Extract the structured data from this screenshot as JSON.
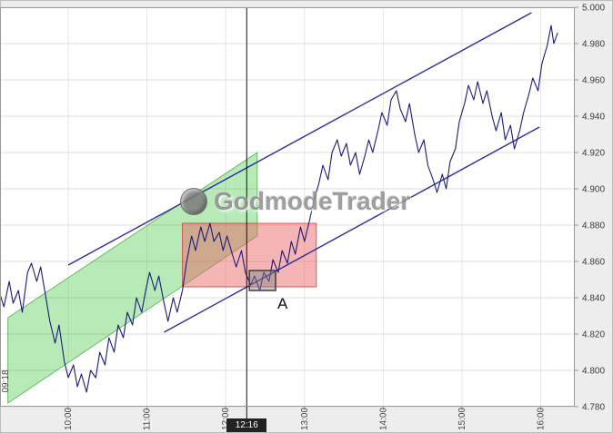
{
  "watermark": {
    "text": "GodmodeTrader"
  },
  "chart_data": {
    "type": "line",
    "title": "",
    "xlabel": "",
    "ylabel": "",
    "grid": true,
    "xlim": [
      548,
      986
    ],
    "ylim": [
      4.78,
      5.0
    ],
    "x_unit": "minutes_since_midnight",
    "y_ticks": [
      {
        "value": 5.0,
        "label": "5.000"
      },
      {
        "value": 4.98,
        "label": "4.980"
      },
      {
        "value": 4.96,
        "label": "4.960"
      },
      {
        "value": 4.94,
        "label": "4.940"
      },
      {
        "value": 4.92,
        "label": "4.920"
      },
      {
        "value": 4.9,
        "label": "4.900"
      },
      {
        "value": 4.88,
        "label": "4.880"
      },
      {
        "value": 4.86,
        "label": "4.860"
      },
      {
        "value": 4.84,
        "label": "4.840"
      },
      {
        "value": 4.82,
        "label": "4.820"
      },
      {
        "value": 4.8,
        "label": "4.800"
      },
      {
        "value": 4.78,
        "label": "4.780"
      }
    ],
    "x_ticks": [
      {
        "value": 600,
        "label": "10:00"
      },
      {
        "value": 660,
        "label": "11:00"
      },
      {
        "value": 720,
        "label": "12:00"
      },
      {
        "value": 780,
        "label": "13:00"
      },
      {
        "value": 840,
        "label": "14:00"
      },
      {
        "value": 900,
        "label": "15:00"
      },
      {
        "value": 960,
        "label": "16:00"
      }
    ],
    "series": [
      {
        "name": "price",
        "color": "#1b1b7e",
        "points": [
          [
            548,
            4.842
          ],
          [
            551,
            4.835
          ],
          [
            555,
            4.849
          ],
          [
            558,
            4.837
          ],
          [
            562,
            4.844
          ],
          [
            565,
            4.832
          ],
          [
            569,
            4.854
          ],
          [
            572,
            4.859
          ],
          [
            576,
            4.849
          ],
          [
            579,
            4.857
          ],
          [
            583,
            4.84
          ],
          [
            586,
            4.827
          ],
          [
            590,
            4.815
          ],
          [
            593,
            4.825
          ],
          [
            597,
            4.805
          ],
          [
            600,
            4.796
          ],
          [
            604,
            4.803
          ],
          [
            607,
            4.791
          ],
          [
            610,
            4.798
          ],
          [
            614,
            4.788
          ],
          [
            617,
            4.8
          ],
          [
            621,
            4.796
          ],
          [
            624,
            4.81
          ],
          [
            628,
            4.803
          ],
          [
            631,
            4.818
          ],
          [
            635,
            4.81
          ],
          [
            638,
            4.825
          ],
          [
            642,
            4.818
          ],
          [
            645,
            4.832
          ],
          [
            649,
            4.825
          ],
          [
            652,
            4.84
          ],
          [
            656,
            4.832
          ],
          [
            659,
            4.844
          ],
          [
            662,
            4.854
          ],
          [
            666,
            4.844
          ],
          [
            669,
            4.852
          ],
          [
            673,
            4.837
          ],
          [
            676,
            4.827
          ],
          [
            680,
            4.84
          ],
          [
            683,
            4.832
          ],
          [
            687,
            4.844
          ],
          [
            690,
            4.859
          ],
          [
            694,
            4.874
          ],
          [
            697,
            4.866
          ],
          [
            701,
            4.879
          ],
          [
            704,
            4.871
          ],
          [
            708,
            4.881
          ],
          [
            711,
            4.871
          ],
          [
            715,
            4.876
          ],
          [
            718,
            4.866
          ],
          [
            721,
            4.874
          ],
          [
            725,
            4.864
          ],
          [
            728,
            4.857
          ],
          [
            732,
            4.866
          ],
          [
            735,
            4.854
          ],
          [
            739,
            4.847
          ],
          [
            742,
            4.852
          ],
          [
            746,
            4.844
          ],
          [
            749,
            4.854
          ],
          [
            753,
            4.849
          ],
          [
            756,
            4.861
          ],
          [
            760,
            4.854
          ],
          [
            763,
            4.866
          ],
          [
            767,
            4.859
          ],
          [
            770,
            4.871
          ],
          [
            773,
            4.864
          ],
          [
            777,
            4.879
          ],
          [
            780,
            4.871
          ],
          [
            784,
            4.883
          ],
          [
            787,
            4.893
          ],
          [
            791,
            4.903
          ],
          [
            794,
            4.913
          ],
          [
            798,
            4.905
          ],
          [
            801,
            4.92
          ],
          [
            805,
            4.927
          ],
          [
            808,
            4.918
          ],
          [
            812,
            4.925
          ],
          [
            815,
            4.913
          ],
          [
            819,
            4.92
          ],
          [
            822,
            4.908
          ],
          [
            826,
            4.918
          ],
          [
            829,
            4.927
          ],
          [
            832,
            4.92
          ],
          [
            836,
            4.932
          ],
          [
            839,
            4.942
          ],
          [
            843,
            4.935
          ],
          [
            846,
            4.949
          ],
          [
            850,
            4.954
          ],
          [
            853,
            4.944
          ],
          [
            857,
            4.937
          ],
          [
            860,
            4.947
          ],
          [
            864,
            4.93
          ],
          [
            867,
            4.92
          ],
          [
            871,
            4.927
          ],
          [
            874,
            4.913
          ],
          [
            878,
            4.905
          ],
          [
            881,
            4.898
          ],
          [
            885,
            4.908
          ],
          [
            888,
            4.9
          ],
          [
            891,
            4.915
          ],
          [
            895,
            4.922
          ],
          [
            898,
            4.937
          ],
          [
            902,
            4.947
          ],
          [
            905,
            4.957
          ],
          [
            909,
            4.949
          ],
          [
            912,
            4.959
          ],
          [
            916,
            4.947
          ],
          [
            919,
            4.954
          ],
          [
            923,
            4.94
          ],
          [
            926,
            4.932
          ],
          [
            930,
            4.942
          ],
          [
            933,
            4.927
          ],
          [
            937,
            4.935
          ],
          [
            940,
            4.922
          ],
          [
            944,
            4.932
          ],
          [
            947,
            4.942
          ],
          [
            951,
            4.952
          ],
          [
            954,
            4.961
          ],
          [
            958,
            4.954
          ],
          [
            961,
            4.969
          ],
          [
            965,
            4.979
          ],
          [
            968,
            4.99
          ],
          [
            970,
            4.98
          ],
          [
            973,
            4.986
          ]
        ]
      }
    ],
    "annotations": {
      "first_time_label": "09:18",
      "green_channel": {
        "fill": "#28be28",
        "stroke": "#1e961e",
        "points": [
          [
            554,
            4.829
          ],
          [
            744,
            4.92
          ],
          [
            744,
            4.874
          ],
          [
            554,
            4.782
          ]
        ]
      },
      "red_zone": {
        "fill": "#eb5a5a",
        "stroke": "#c83c3c",
        "t1": 687,
        "t2": 789,
        "p1": 4.846,
        "p2": 4.881
      },
      "upper_trendline": {
        "color": "#2d2d9e",
        "from": [
          600,
          4.858
        ],
        "to": [
          953,
          4.997
        ]
      },
      "lower_trendline": {
        "color": "#2d2d9e",
        "from": [
          673,
          4.821
        ],
        "to": [
          959,
          4.934
        ]
      },
      "box_a": {
        "label": "A",
        "t1": 738,
        "t2": 758,
        "p1": 4.844,
        "p2": 4.855
      },
      "crosshair": {
        "time": 736,
        "label": "12:16"
      }
    }
  }
}
